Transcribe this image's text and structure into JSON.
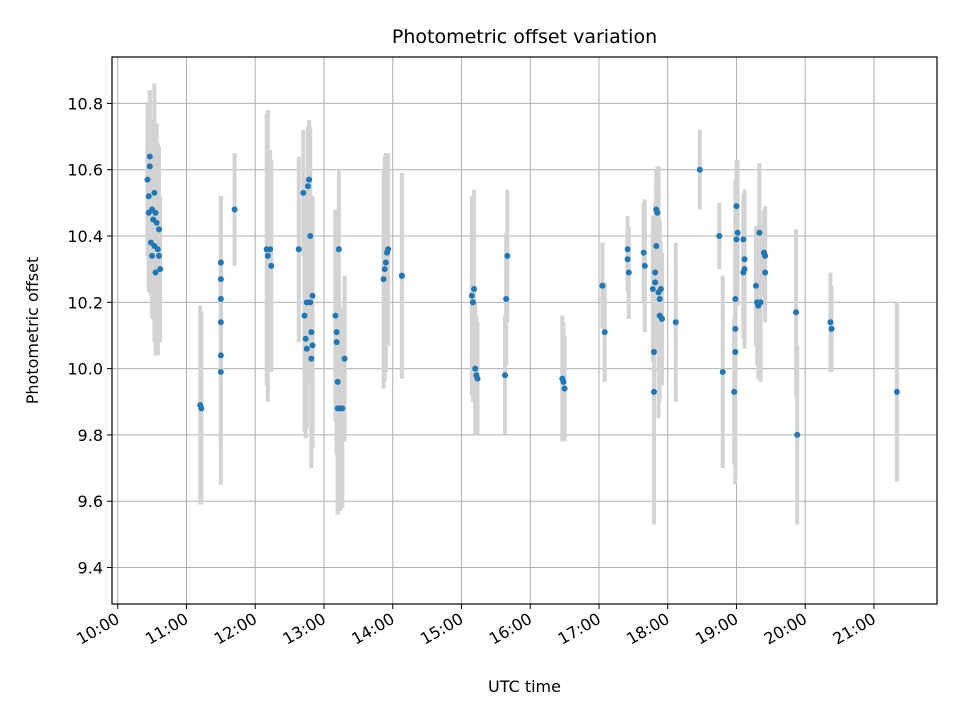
{
  "chart_data": {
    "type": "scatter",
    "title": "Photometric offset variation",
    "xlabel": "UTC time",
    "ylabel": "Photometric offset",
    "xlim": [
      "09:55",
      "21:55"
    ],
    "ylim": [
      9.29,
      10.94
    ],
    "grid": true,
    "x_ticks": [
      "10:00",
      "11:00",
      "12:00",
      "13:00",
      "14:00",
      "15:00",
      "16:00",
      "17:00",
      "18:00",
      "19:00",
      "20:00",
      "21:00"
    ],
    "y_ticks": [
      "9.4",
      "9.6",
      "9.8",
      "10.0",
      "10.2",
      "10.4",
      "10.6",
      "10.8"
    ],
    "colors": {
      "point": "#1f77b4",
      "errorbar": "#d3d3d3",
      "grid": "#b0b0b0"
    },
    "points": [
      {
        "t": "10:26",
        "y": 10.57,
        "err": 0.23
      },
      {
        "t": "10:27",
        "y": 10.52,
        "err": 0.22
      },
      {
        "t": "10:27",
        "y": 10.47,
        "err": 0.24
      },
      {
        "t": "10:28",
        "y": 10.64,
        "err": 0.2
      },
      {
        "t": "10:28",
        "y": 10.61,
        "err": 0.23
      },
      {
        "t": "10:29",
        "y": 10.38,
        "err": 0.16
      },
      {
        "t": "10:30",
        "y": 10.48,
        "err": 0.27
      },
      {
        "t": "10:30",
        "y": 10.34,
        "err": 0.19
      },
      {
        "t": "10:31",
        "y": 10.45,
        "err": 0.26
      },
      {
        "t": "10:32",
        "y": 10.53,
        "err": 0.33
      },
      {
        "t": "10:32",
        "y": 10.37,
        "err": 0.29
      },
      {
        "t": "10:33",
        "y": 10.47,
        "err": 0.22
      },
      {
        "t": "10:33",
        "y": 10.29,
        "err": 0.25
      },
      {
        "t": "10:34",
        "y": 10.44,
        "err": 0.3
      },
      {
        "t": "10:35",
        "y": 10.36,
        "err": 0.32
      },
      {
        "t": "10:36",
        "y": 10.42,
        "err": 0.25
      },
      {
        "t": "10:36",
        "y": 10.34,
        "err": 0.26
      },
      {
        "t": "10:37",
        "y": 10.3,
        "err": 0.22
      },
      {
        "t": "11:12",
        "y": 9.89,
        "err": 0.3
      },
      {
        "t": "11:13",
        "y": 9.88,
        "err": 0.29
      },
      {
        "t": "11:30",
        "y": 10.32,
        "err": 0.2
      },
      {
        "t": "11:30",
        "y": 10.27,
        "err": 0.25
      },
      {
        "t": "11:30",
        "y": 10.21,
        "err": 0.31
      },
      {
        "t": "11:30",
        "y": 10.14,
        "err": 0.36
      },
      {
        "t": "11:30",
        "y": 10.04,
        "err": 0.28
      },
      {
        "t": "11:30",
        "y": 9.99,
        "err": 0.34
      },
      {
        "t": "11:42",
        "y": 10.48,
        "err": 0.17
      },
      {
        "t": "12:10",
        "y": 10.36,
        "err": 0.41
      },
      {
        "t": "12:11",
        "y": 10.34,
        "err": 0.44
      },
      {
        "t": "12:13",
        "y": 10.36,
        "err": 0.3
      },
      {
        "t": "12:14",
        "y": 10.31,
        "err": 0.32
      },
      {
        "t": "12:38",
        "y": 10.36,
        "err": 0.28
      },
      {
        "t": "12:42",
        "y": 10.53,
        "err": 0.19
      },
      {
        "t": "12:43",
        "y": 10.16,
        "err": 0.35
      },
      {
        "t": "12:44",
        "y": 10.09,
        "err": 0.3
      },
      {
        "t": "12:45",
        "y": 10.2,
        "err": 0.38
      },
      {
        "t": "12:45",
        "y": 10.06,
        "err": 0.24
      },
      {
        "t": "12:46",
        "y": 10.55,
        "err": 0.18
      },
      {
        "t": "12:47",
        "y": 10.57,
        "err": 0.18
      },
      {
        "t": "12:48",
        "y": 10.4,
        "err": 0.33
      },
      {
        "t": "12:48",
        "y": 10.2,
        "err": 0.25
      },
      {
        "t": "12:49",
        "y": 10.11,
        "err": 0.3
      },
      {
        "t": "12:49",
        "y": 10.03,
        "err": 0.33
      },
      {
        "t": "12:50",
        "y": 10.22,
        "err": 0.3
      },
      {
        "t": "12:50",
        "y": 10.07,
        "err": 0.31
      },
      {
        "t": "13:10",
        "y": 10.16,
        "err": 0.32
      },
      {
        "t": "13:11",
        "y": 10.11,
        "err": 0.32
      },
      {
        "t": "13:11",
        "y": 10.08,
        "err": 0.34
      },
      {
        "t": "13:12",
        "y": 9.88,
        "err": 0.32
      },
      {
        "t": "13:12",
        "y": 9.96,
        "err": 0.4
      },
      {
        "t": "13:13",
        "y": 10.36,
        "err": 0.24
      },
      {
        "t": "13:14",
        "y": 9.88,
        "err": 0.31
      },
      {
        "t": "13:16",
        "y": 9.88,
        "err": 0.3
      },
      {
        "t": "13:18",
        "y": 10.03,
        "err": 0.25
      },
      {
        "t": "13:52",
        "y": 10.27,
        "err": 0.33
      },
      {
        "t": "13:53",
        "y": 10.3,
        "err": 0.34
      },
      {
        "t": "13:54",
        "y": 10.32,
        "err": 0.33
      },
      {
        "t": "13:55",
        "y": 10.35,
        "err": 0.28
      },
      {
        "t": "13:56",
        "y": 10.36,
        "err": 0.29
      },
      {
        "t": "14:08",
        "y": 10.28,
        "err": 0.31
      },
      {
        "t": "14:08",
        "y": 10.28,
        "err": 0.3
      },
      {
        "t": "15:09",
        "y": 10.22,
        "err": 0.3
      },
      {
        "t": "15:10",
        "y": 10.2,
        "err": 0.3
      },
      {
        "t": "15:11",
        "y": 10.24,
        "err": 0.3
      },
      {
        "t": "15:12",
        "y": 10.0,
        "err": 0.2
      },
      {
        "t": "15:13",
        "y": 9.98,
        "err": 0.18
      },
      {
        "t": "15:14",
        "y": 9.97,
        "err": 0.17
      },
      {
        "t": "15:38",
        "y": 9.98,
        "err": 0.18
      },
      {
        "t": "15:39",
        "y": 10.21,
        "err": 0.2
      },
      {
        "t": "15:40",
        "y": 10.34,
        "err": 0.2
      },
      {
        "t": "16:28",
        "y": 9.97,
        "err": 0.19
      },
      {
        "t": "16:29",
        "y": 9.96,
        "err": 0.18
      },
      {
        "t": "16:30",
        "y": 9.94,
        "err": 0.16
      },
      {
        "t": "17:03",
        "y": 10.25,
        "err": 0.13
      },
      {
        "t": "17:05",
        "y": 10.11,
        "err": 0.15
      },
      {
        "t": "17:25",
        "y": 10.36,
        "err": 0.1
      },
      {
        "t": "17:25",
        "y": 10.33,
        "err": 0.1
      },
      {
        "t": "17:26",
        "y": 10.29,
        "err": 0.14
      },
      {
        "t": "17:39",
        "y": 10.35,
        "err": 0.15
      },
      {
        "t": "17:40",
        "y": 10.31,
        "err": 0.2
      },
      {
        "t": "17:47",
        "y": 10.24,
        "err": 0.22
      },
      {
        "t": "17:48",
        "y": 10.05,
        "err": 0.27
      },
      {
        "t": "17:48",
        "y": 9.93,
        "err": 0.4
      },
      {
        "t": "17:49",
        "y": 10.26,
        "err": 0.21
      },
      {
        "t": "17:49",
        "y": 10.29,
        "err": 0.21
      },
      {
        "t": "17:50",
        "y": 10.37,
        "err": 0.2
      },
      {
        "t": "17:50",
        "y": 10.48,
        "err": 0.12
      },
      {
        "t": "17:51",
        "y": 10.47,
        "err": 0.14
      },
      {
        "t": "17:52",
        "y": 10.23,
        "err": 0.38
      },
      {
        "t": "17:53",
        "y": 10.21,
        "err": 0.24
      },
      {
        "t": "17:53",
        "y": 10.16,
        "err": 0.26
      },
      {
        "t": "17:54",
        "y": 10.24,
        "err": 0.14
      },
      {
        "t": "17:55",
        "y": 10.15,
        "err": 0.2
      },
      {
        "t": "18:07",
        "y": 10.14,
        "err": 0.24
      },
      {
        "t": "18:28",
        "y": 10.6,
        "err": 0.12
      },
      {
        "t": "18:45",
        "y": 10.4,
        "err": 0.1
      },
      {
        "t": "18:48",
        "y": 9.99,
        "err": 0.29
      },
      {
        "t": "18:58",
        "y": 9.93,
        "err": 0.22
      },
      {
        "t": "18:59",
        "y": 10.21,
        "err": 0.36
      },
      {
        "t": "18:59",
        "y": 10.12,
        "err": 0.29
      },
      {
        "t": "18:59",
        "y": 10.05,
        "err": 0.4
      },
      {
        "t": "19:00",
        "y": 10.39,
        "err": 0.17
      },
      {
        "t": "19:00",
        "y": 10.49,
        "err": 0.14
      },
      {
        "t": "19:01",
        "y": 10.41,
        "err": 0.22
      },
      {
        "t": "19:06",
        "y": 10.29,
        "err": 0.2
      },
      {
        "t": "19:06",
        "y": 10.39,
        "err": 0.14
      },
      {
        "t": "19:07",
        "y": 10.33,
        "err": 0.2
      },
      {
        "t": "19:07",
        "y": 10.3,
        "err": 0.24
      },
      {
        "t": "19:17",
        "y": 10.25,
        "err": 0.18
      },
      {
        "t": "19:18",
        "y": 10.2,
        "err": 0.19
      },
      {
        "t": "19:19",
        "y": 10.19,
        "err": 0.22
      },
      {
        "t": "19:20",
        "y": 10.41,
        "err": 0.21
      },
      {
        "t": "19:21",
        "y": 10.2,
        "err": 0.24
      },
      {
        "t": "19:24",
        "y": 10.35,
        "err": 0.13
      },
      {
        "t": "19:25",
        "y": 10.34,
        "err": 0.15
      },
      {
        "t": "19:25",
        "y": 10.29,
        "err": 0.15
      },
      {
        "t": "19:52",
        "y": 10.17,
        "err": 0.25
      },
      {
        "t": "19:53",
        "y": 9.8,
        "err": 0.27
      },
      {
        "t": "20:22",
        "y": 10.14,
        "err": 0.15
      },
      {
        "t": "20:23",
        "y": 10.12,
        "err": 0.13
      },
      {
        "t": "21:20",
        "y": 9.93,
        "err": 0.27
      }
    ]
  }
}
